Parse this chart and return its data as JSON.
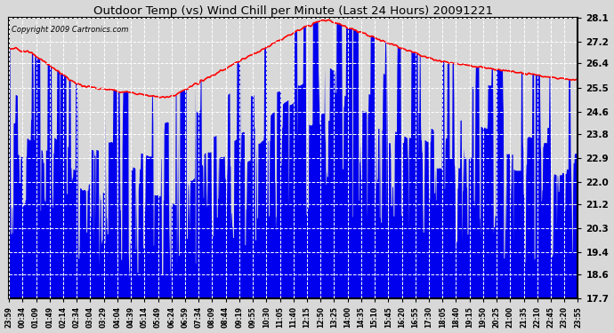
{
  "title": "Outdoor Temp (vs) Wind Chill per Minute (Last 24 Hours) 20091221",
  "copyright_text": "Copyright 2009 Cartronics.com",
  "background_color": "#d8d8d8",
  "plot_bg_color": "#d8d8d8",
  "grid_color": "#ffffff",
  "outdoor_temp_color": "#ff0000",
  "wind_chill_color": "#0000ee",
  "ylim_min": 17.7,
  "ylim_max": 28.1,
  "yticks": [
    17.7,
    18.6,
    19.4,
    20.3,
    21.2,
    22.0,
    22.9,
    23.8,
    24.6,
    25.5,
    26.4,
    27.2,
    28.1
  ],
  "x_labels": [
    "23:59",
    "00:34",
    "01:09",
    "01:49",
    "02:14",
    "02:34",
    "03:04",
    "03:29",
    "04:04",
    "04:39",
    "05:14",
    "05:49",
    "06:24",
    "06:59",
    "07:34",
    "08:09",
    "08:44",
    "09:19",
    "09:55",
    "10:30",
    "11:05",
    "11:40",
    "12:15",
    "12:50",
    "13:25",
    "14:00",
    "14:35",
    "15:10",
    "15:45",
    "16:20",
    "16:55",
    "17:30",
    "18:05",
    "18:40",
    "19:15",
    "19:50",
    "20:25",
    "21:00",
    "21:35",
    "22:10",
    "22:45",
    "23:20",
    "23:55"
  ]
}
